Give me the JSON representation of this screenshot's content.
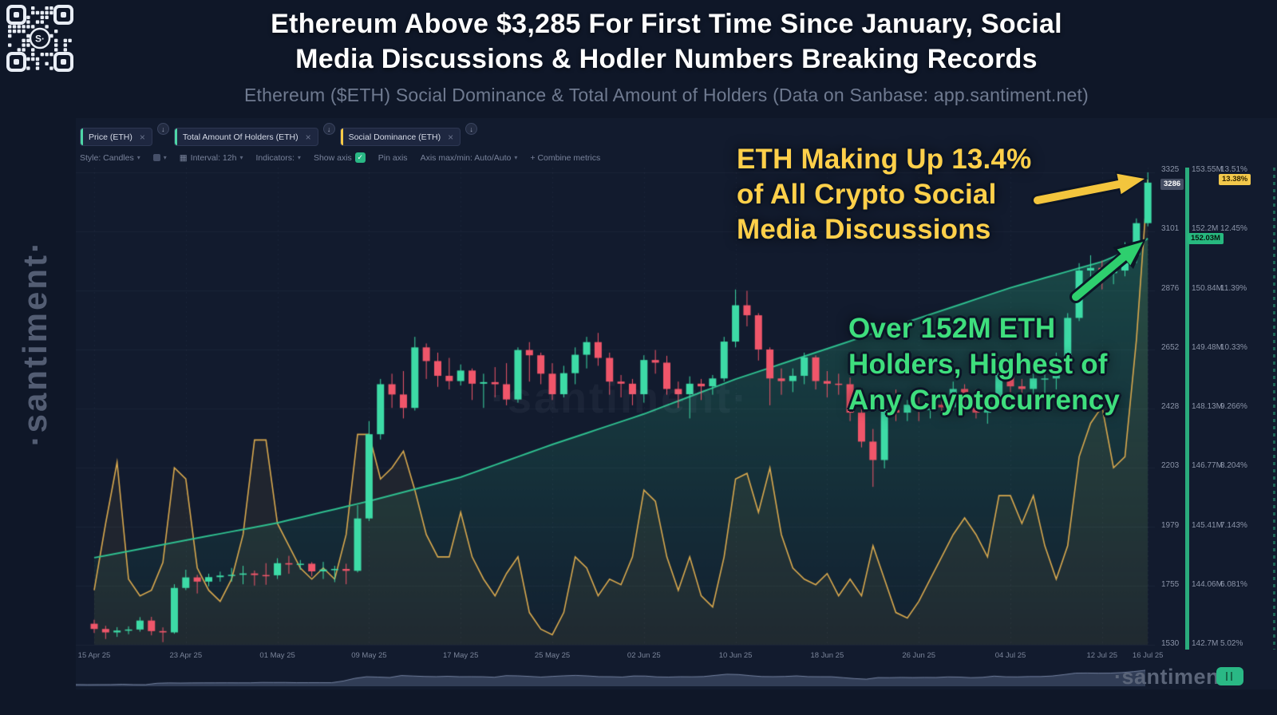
{
  "header": {
    "title_line1": "Ethereum Above $3,285 For First Time Since January, Social",
    "title_line2": "Media Discussions & Hodler Numbers Breaking Records",
    "subtitle": "Ethereum ($ETH) Social Dominance & Total Amount of Holders (Data on Sanbase: app.santiment.net)"
  },
  "branding": {
    "vertical_logo": "·santiment·",
    "watermark": "·santiment·",
    "footer_logo": "·santiment",
    "qr_center": "S·"
  },
  "icons": {
    "close": "×",
    "collapse_arrow": "↓",
    "caret": "▾",
    "check": "✓",
    "calendar": "▦"
  },
  "tabs": [
    {
      "label": "Price (ETH)",
      "accent": "#4ed6a7"
    },
    {
      "label": "Total Amount Of Holders (ETH)",
      "accent": "#4ed6a7"
    },
    {
      "label": "Social Dominance (ETH)",
      "accent": "#ffcb47"
    }
  ],
  "toolbar": {
    "style_label": "Style: Candles",
    "interval_label": "Interval: 12h",
    "indicators_label": "Indicators:",
    "show_axis_label": "Show axis",
    "pin_axis_label": "Pin axis",
    "axis_maxmin_label": "Axis max/min: Auto/Auto",
    "combine_label": "+ Combine metrics"
  },
  "badges": {
    "price": "3286",
    "holders": "152.03M",
    "social": "13.38%"
  },
  "annotations": {
    "social_note": [
      "ETH Making Up 13.4%",
      "of All Crypto Social",
      "Media Discussions"
    ],
    "holders_note": [
      "Over 152M ETH",
      "Holders, Highest of",
      "Any Cryptocurrency"
    ]
  },
  "chart_data": {
    "type": "mixed",
    "x_ticks": [
      "15 Apr 25",
      "23 Apr 25",
      "01 May 25",
      "09 May 25",
      "17 May 25",
      "25 May 25",
      "02 Jun 25",
      "10 Jun 25",
      "18 Jun 25",
      "26 Jun 25",
      "04 Jul 25",
      "12 Jul 25",
      "16 Jul 25"
    ],
    "x_tick_indices": [
      0,
      8,
      16,
      24,
      32,
      40,
      48,
      56,
      64,
      72,
      80,
      88,
      92
    ],
    "axes": {
      "price": {
        "min": 1530,
        "max": 3325,
        "ticks": [
          3325,
          3101,
          2876,
          2652,
          2428,
          2203,
          1979,
          1755,
          1530
        ],
        "current": 3286
      },
      "holders": {
        "min": 142.7,
        "max": 153.55,
        "tick_labels": [
          "153.55M",
          "152.2M",
          "150.84M",
          "149.48M",
          "148.13M",
          "146.77M",
          "145.41M",
          "144.06M",
          "142.7M"
        ],
        "current": 152.03
      },
      "social": {
        "min": 5.02,
        "max": 13.51,
        "tick_labels": [
          "13.51%",
          "12.45%",
          "11.39%",
          "10.33%",
          "9.266%",
          "8.204%",
          "7.143%",
          "6.081%",
          "5.02%"
        ],
        "current": 13.38
      }
    },
    "series": [
      {
        "name": "Price (ETH)",
        "type": "candlestick",
        "axis": "price",
        "up_color": "#3ddba6",
        "down_color": "#f0566a",
        "candles": [
          [
            1610,
            1625,
            1575,
            1590
          ],
          [
            1590,
            1602,
            1552,
            1577
          ],
          [
            1577,
            1597,
            1560,
            1584
          ],
          [
            1584,
            1600,
            1570,
            1588
          ],
          [
            1588,
            1635,
            1580,
            1622
          ],
          [
            1622,
            1636,
            1566,
            1582
          ],
          [
            1582,
            1596,
            1540,
            1577
          ],
          [
            1577,
            1760,
            1572,
            1746
          ],
          [
            1746,
            1815,
            1738,
            1786
          ],
          [
            1786,
            1796,
            1725,
            1770
          ],
          [
            1770,
            1800,
            1752,
            1787
          ],
          [
            1787,
            1808,
            1770,
            1793
          ],
          [
            1793,
            1822,
            1770,
            1796
          ],
          [
            1796,
            1830,
            1760,
            1801
          ],
          [
            1801,
            1812,
            1755,
            1795
          ],
          [
            1795,
            1840,
            1758,
            1794
          ],
          [
            1794,
            1859,
            1780,
            1840
          ],
          [
            1840,
            1868,
            1800,
            1835
          ],
          [
            1835,
            1852,
            1815,
            1838
          ],
          [
            1838,
            1844,
            1790,
            1809
          ],
          [
            1809,
            1845,
            1780,
            1816
          ],
          [
            1816,
            1830,
            1768,
            1818
          ],
          [
            1818,
            1838,
            1760,
            1811
          ],
          [
            1811,
            2060,
            1805,
            2010
          ],
          [
            2010,
            2380,
            2000,
            2330
          ],
          [
            2330,
            2540,
            2310,
            2520
          ],
          [
            2520,
            2560,
            2430,
            2481
          ],
          [
            2481,
            2570,
            2390,
            2430
          ],
          [
            2430,
            2700,
            2420,
            2660
          ],
          [
            2660,
            2675,
            2540,
            2608
          ],
          [
            2608,
            2640,
            2510,
            2552
          ],
          [
            2552,
            2620,
            2500,
            2532
          ],
          [
            2532,
            2595,
            2515,
            2572
          ],
          [
            2572,
            2580,
            2460,
            2522
          ],
          [
            2522,
            2560,
            2430,
            2528
          ],
          [
            2528,
            2585,
            2470,
            2520
          ],
          [
            2520,
            2600,
            2440,
            2462
          ],
          [
            2462,
            2660,
            2450,
            2650
          ],
          [
            2650,
            2680,
            2530,
            2630
          ],
          [
            2630,
            2640,
            2520,
            2560
          ],
          [
            2560,
            2600,
            2460,
            2482
          ],
          [
            2482,
            2590,
            2470,
            2562
          ],
          [
            2562,
            2660,
            2520,
            2632
          ],
          [
            2632,
            2700,
            2580,
            2680
          ],
          [
            2680,
            2715,
            2590,
            2620
          ],
          [
            2620,
            2640,
            2480,
            2530
          ],
          [
            2530,
            2555,
            2470,
            2522
          ],
          [
            2522,
            2540,
            2440,
            2482
          ],
          [
            2482,
            2630,
            2450,
            2612
          ],
          [
            2612,
            2650,
            2560,
            2602
          ],
          [
            2602,
            2628,
            2480,
            2502
          ],
          [
            2502,
            2530,
            2430,
            2482
          ],
          [
            2482,
            2550,
            2390,
            2522
          ],
          [
            2522,
            2540,
            2460,
            2512
          ],
          [
            2512,
            2555,
            2480,
            2542
          ],
          [
            2542,
            2700,
            2530,
            2682
          ],
          [
            2682,
            2880,
            2660,
            2820
          ],
          [
            2820,
            2875,
            2740,
            2782
          ],
          [
            2782,
            2790,
            2610,
            2652
          ],
          [
            2652,
            2660,
            2440,
            2542
          ],
          [
            2542,
            2580,
            2480,
            2532
          ],
          [
            2532,
            2580,
            2490,
            2552
          ],
          [
            2552,
            2640,
            2520,
            2622
          ],
          [
            2622,
            2630,
            2500,
            2532
          ],
          [
            2532,
            2570,
            2470,
            2522
          ],
          [
            2522,
            2560,
            2480,
            2520
          ],
          [
            2520,
            2545,
            2380,
            2412
          ],
          [
            2412,
            2440,
            2280,
            2302
          ],
          [
            2302,
            2350,
            2130,
            2232
          ],
          [
            2232,
            2450,
            2200,
            2422
          ],
          [
            2422,
            2500,
            2380,
            2412
          ],
          [
            2412,
            2460,
            2380,
            2442
          ],
          [
            2442,
            2470,
            2380,
            2422
          ],
          [
            2422,
            2480,
            2390,
            2442
          ],
          [
            2442,
            2460,
            2400,
            2432
          ],
          [
            2432,
            2530,
            2420,
            2502
          ],
          [
            2502,
            2520,
            2430,
            2482
          ],
          [
            2482,
            2500,
            2390,
            2412
          ],
          [
            2412,
            2470,
            2370,
            2452
          ],
          [
            2452,
            2620,
            2440,
            2592
          ],
          [
            2592,
            2600,
            2480,
            2512
          ],
          [
            2512,
            2540,
            2470,
            2502
          ],
          [
            2502,
            2560,
            2480,
            2542
          ],
          [
            2542,
            2570,
            2470,
            2542
          ],
          [
            2542,
            2640,
            2500,
            2612
          ],
          [
            2612,
            2790,
            2600,
            2772
          ],
          [
            2772,
            2980,
            2760,
            2952
          ],
          [
            2952,
            3010,
            2900,
            2962
          ],
          [
            2962,
            2990,
            2880,
            2942
          ],
          [
            2942,
            2980,
            2900,
            2952
          ],
          [
            2952,
            3060,
            2930,
            3012
          ],
          [
            3012,
            3150,
            2980,
            3132
          ],
          [
            3132,
            3325,
            3120,
            3286
          ]
        ]
      },
      {
        "name": "Total Amount Of Holders (ETH)",
        "type": "line",
        "axis": "holders",
        "color": "#2fbf8f",
        "anchors": {
          "i": [
            0,
            8,
            16,
            24,
            32,
            40,
            48,
            56,
            64,
            72,
            80,
            84,
            88,
            90,
            92
          ],
          "v": [
            144.7,
            145.1,
            145.5,
            146.0,
            146.55,
            147.3,
            148.0,
            148.8,
            149.5,
            150.2,
            150.9,
            151.2,
            151.5,
            151.72,
            152.03
          ]
        }
      },
      {
        "name": "Social Dominance (ETH)",
        "type": "line",
        "axis": "social",
        "color": "#d9a94e",
        "values": [
          6.0,
          7.2,
          8.3,
          6.2,
          5.9,
          6.0,
          6.5,
          8.2,
          8.0,
          6.4,
          6.0,
          5.8,
          6.2,
          7.0,
          8.7,
          8.7,
          7.2,
          6.8,
          6.4,
          6.2,
          6.4,
          6.2,
          7.0,
          8.8,
          8.8,
          8.0,
          8.2,
          8.5,
          7.8,
          7.0,
          6.6,
          6.6,
          7.4,
          6.6,
          6.2,
          5.9,
          6.3,
          6.6,
          5.6,
          5.3,
          5.2,
          5.6,
          6.6,
          6.4,
          5.9,
          6.2,
          6.1,
          6.6,
          7.8,
          7.6,
          6.6,
          6.0,
          6.6,
          5.9,
          5.7,
          6.6,
          8.0,
          8.1,
          7.4,
          8.2,
          7.0,
          6.4,
          6.2,
          6.1,
          6.3,
          5.9,
          6.2,
          5.9,
          6.8,
          6.2,
          5.6,
          5.5,
          5.8,
          6.2,
          6.6,
          7.0,
          7.3,
          7.0,
          6.6,
          7.7,
          7.7,
          7.2,
          7.7,
          6.8,
          6.2,
          6.8,
          8.4,
          9.0,
          9.3,
          8.2,
          8.4,
          10.5,
          13.38
        ]
      }
    ]
  }
}
